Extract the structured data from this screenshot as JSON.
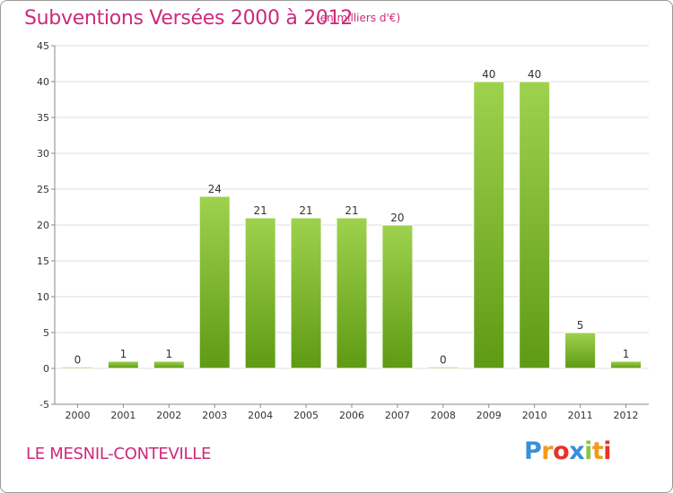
{
  "title": "Subventions Versées 2000 à 2012",
  "subtitle": "(en milliers d'€)",
  "commune": "LE MESNIL-CONTEVILLE",
  "logo": {
    "text": "Proxiti",
    "letters": [
      {
        "char": "P",
        "color": "#3a8fd8"
      },
      {
        "char": "r",
        "color": "#f29a1d"
      },
      {
        "char": "o",
        "color": "#e8312a"
      },
      {
        "char": "x",
        "color": "#3a8fd8"
      },
      {
        "char": "i",
        "color": "#8cc63f"
      },
      {
        "char": "t",
        "color": "#f29a1d"
      },
      {
        "char": "i",
        "color": "#e8312a"
      }
    ]
  },
  "colors": {
    "accent": "#cc2a7a",
    "bar_light": "#9ed24e",
    "bar_dark": "#5f9a15",
    "grid": "#dddddd",
    "axis": "#888888"
  },
  "chart_data": {
    "type": "bar",
    "categories": [
      "2000",
      "2001",
      "2002",
      "2003",
      "2004",
      "2005",
      "2006",
      "2007",
      "2008",
      "2009",
      "2010",
      "2011",
      "2012"
    ],
    "values": [
      0,
      1,
      1,
      24,
      21,
      21,
      21,
      20,
      0,
      40,
      40,
      5,
      1
    ],
    "data_labels": [
      "0",
      "1",
      "1",
      "24",
      "21",
      "21",
      "21",
      "20",
      "0",
      "40",
      "40",
      "5",
      "1"
    ],
    "ylim": [
      -5,
      45
    ],
    "yticks": [
      -5,
      0,
      5,
      10,
      15,
      20,
      25,
      30,
      35,
      40,
      45
    ],
    "grid": "horizontal",
    "xlabel": "",
    "ylabel": ""
  }
}
